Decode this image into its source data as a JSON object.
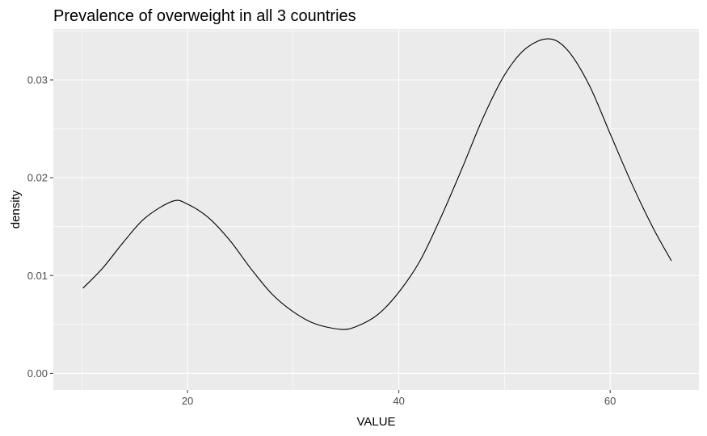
{
  "chart_data": {
    "type": "line",
    "title": "Prevalence of overweight in all 3 countries",
    "xlabel": "VALUE",
    "ylabel": "density",
    "xlim": [
      7.3,
      68.4
    ],
    "ylim": [
      -0.0017,
      0.0352
    ],
    "x_ticks": [
      20,
      40,
      60
    ],
    "x_tick_labels": [
      "20",
      "40",
      "60"
    ],
    "y_ticks": [
      0.0,
      0.01,
      0.02,
      0.03
    ],
    "y_tick_labels": [
      "0.00",
      "0.01",
      "0.02",
      "0.03"
    ],
    "grid": true,
    "legend": "none",
    "series": [
      {
        "x": [
          10.1,
          12,
          14,
          16,
          18.6,
          20,
          22,
          24,
          26,
          28,
          30,
          32,
          34.5,
          36,
          38,
          40,
          42,
          44,
          46,
          48,
          50,
          52,
          54.2,
          56,
          58,
          60,
          62,
          64,
          65.8
        ],
        "y": [
          0.0087,
          0.0108,
          0.0135,
          0.0159,
          0.0176,
          0.0173,
          0.0159,
          0.0136,
          0.0107,
          0.0081,
          0.0063,
          0.0051,
          0.0045,
          0.0048,
          0.006,
          0.0083,
          0.0115,
          0.016,
          0.021,
          0.0262,
          0.0305,
          0.0332,
          0.0342,
          0.033,
          0.0295,
          0.0245,
          0.0195,
          0.015,
          0.0115
        ]
      }
    ],
    "colors": {
      "panel_background": "#ebebeb",
      "grid_line": "#ffffff",
      "line": "#000000",
      "tick_label": "#4d4d4d"
    }
  }
}
